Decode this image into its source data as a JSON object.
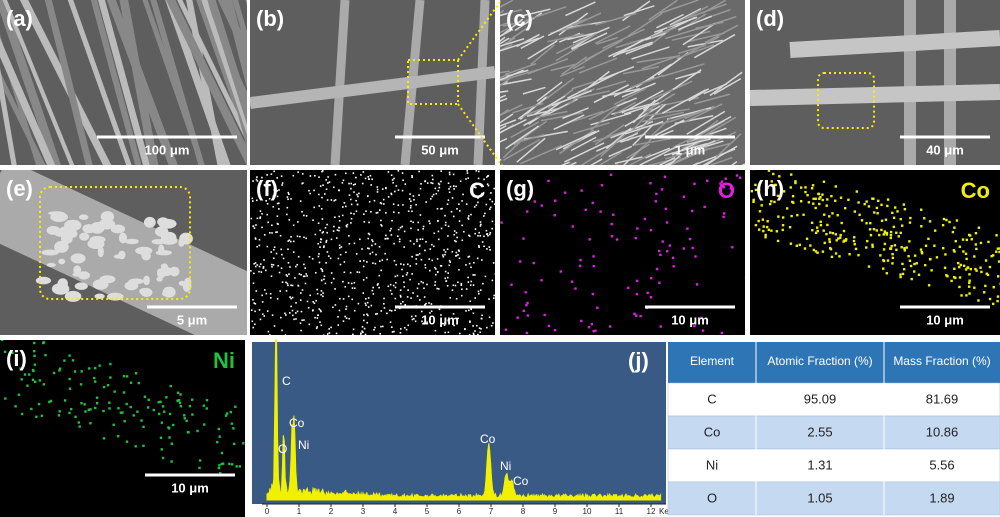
{
  "panels": [
    {
      "label": "(a)",
      "scale_bar": "100 μm"
    },
    {
      "label": "(b)",
      "scale_bar": "50 μm"
    },
    {
      "label": "(c)",
      "scale_bar": "1 μm"
    },
    {
      "label": "(d)",
      "scale_bar": "40 μm"
    },
    {
      "label": "(e)",
      "scale_bar": "5 μm"
    },
    {
      "label": "(f)",
      "element": "C",
      "scale_bar": "10 μm"
    },
    {
      "label": "(g)",
      "element": "O",
      "scale_bar": "10 μm"
    },
    {
      "label": "(h)",
      "element": "Co",
      "scale_bar": "10 μm"
    },
    {
      "label": "(i)",
      "element": "Ni",
      "scale_bar": "10 μm"
    }
  ],
  "spectrum": {
    "label": "(j)",
    "xticks": [
      0,
      1,
      2,
      3,
      4,
      5,
      6,
      7,
      8,
      9,
      10,
      11,
      12
    ],
    "unit": "KeV",
    "peaks": [
      "C",
      "O",
      "Co",
      "Ni",
      "Co",
      "Ni",
      "Co"
    ]
  },
  "table": {
    "header": [
      "Element",
      "Atomic Fraction (%)",
      "Mass Fraction (%)"
    ],
    "rows": [
      [
        "C",
        "95.09",
        "81.69"
      ],
      [
        "Co",
        "2.55",
        "10.86"
      ],
      [
        "Ni",
        "1.31",
        "5.56"
      ],
      [
        "O",
        "1.05",
        "1.89"
      ]
    ]
  }
}
